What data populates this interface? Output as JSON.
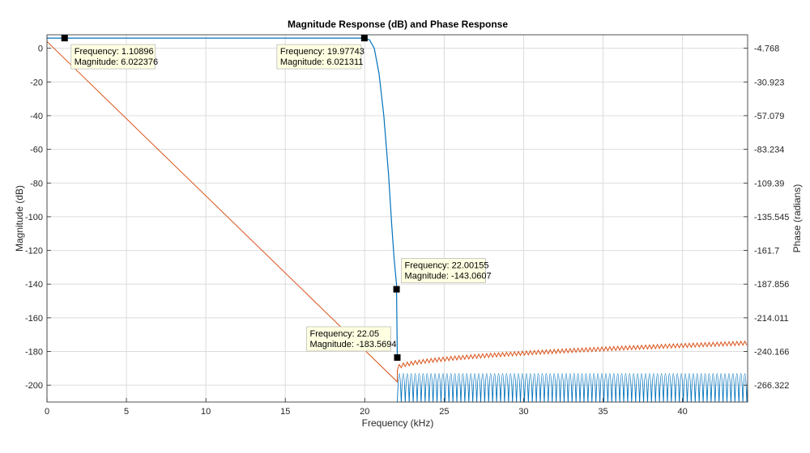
{
  "chart_data": {
    "type": "line",
    "title": "Magnitude Response (dB) and Phase Response",
    "xlabel": "Frequency (kHz)",
    "ylabel": "Magnitude (dB)",
    "y2label": "Phase (radians)",
    "xlim": [
      0,
      44.1
    ],
    "ylim": [
      -210,
      8
    ],
    "xticks": [
      0,
      5,
      10,
      15,
      20,
      25,
      30,
      35,
      40
    ],
    "yticks": [
      0,
      -20,
      -40,
      -60,
      -80,
      -100,
      -120,
      -140,
      -160,
      -180,
      -200
    ],
    "y2ticks": [
      "-4.768",
      "-30.923",
      "-57.079",
      "-83.234",
      "-109.39",
      "-135.545",
      "-161.7",
      "-187.856",
      "-214.011",
      "-240.166",
      "-266.322"
    ],
    "grid": true,
    "colors": {
      "magnitude": "#0072bd",
      "phase": "#d95319"
    },
    "series": [
      {
        "role": "magnitude",
        "x": [
          0,
          1.10896,
          19.0,
          19.97743,
          20.3,
          20.6,
          20.9,
          21.2,
          21.5,
          21.7,
          21.85,
          22.0,
          22.00155,
          22.05
        ],
        "y": [
          6.02,
          6.022376,
          6.02,
          6.021311,
          5.0,
          0,
          -15,
          -40,
          -75,
          -105,
          -125,
          -140,
          -143.0607,
          -183.5694
        ]
      },
      {
        "role": "phase",
        "x": [
          0,
          22.05
        ],
        "y": [
          4,
          -198
        ]
      }
    ],
    "stopband": {
      "xStart": 22.05,
      "xEnd": 44.1,
      "top": -182,
      "bottom": -210,
      "periodKHz": 0.25
    },
    "phaseRipple": {
      "yStart": -190,
      "yEnd": -175,
      "amp": 1.2,
      "periodKHz": 0.25
    },
    "datatips": [
      {
        "freq_label": "Frequency: 1.10896",
        "mag_label": "Magnitude: 6.022376",
        "x": 1.10896,
        "y": 6.022376,
        "dx": 8,
        "dy": 8
      },
      {
        "freq_label": "Frequency: 19.97743",
        "mag_label": "Magnitude: 6.021311",
        "x": 19.97743,
        "y": 6.021311,
        "dx": -108,
        "dy": 8
      },
      {
        "freq_label": "Frequency: 22.00155",
        "mag_label": "Magnitude: -143.0607",
        "x": 22.00155,
        "y": -143.0607,
        "dx": 6,
        "dy": -38
      },
      {
        "freq_label": "Frequency: 22.05",
        "mag_label": "Magnitude: -183.5694",
        "x": 22.05,
        "y": -183.5694,
        "dx": -112,
        "dy": -38
      }
    ]
  }
}
